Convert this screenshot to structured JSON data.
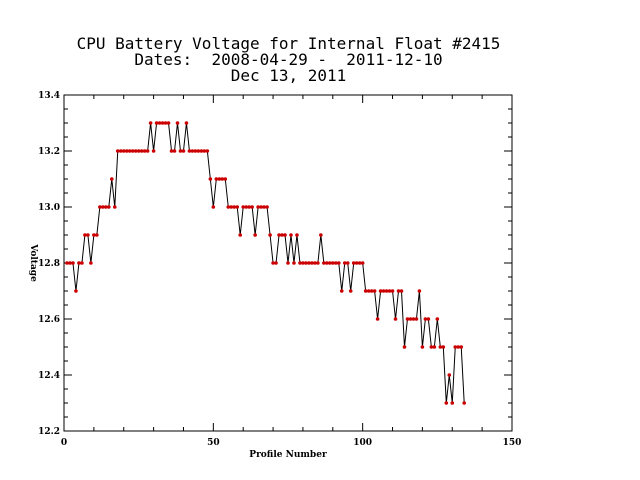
{
  "chart_data": {
    "type": "line",
    "title_lines": [
      "CPU Battery Voltage for Internal Float #2415",
      "Dates:  2008-04-29 -  2011-12-10",
      "Dec 13, 2011"
    ],
    "xlabel": "Profile Number",
    "ylabel": "Voltage",
    "xlim": [
      0,
      150
    ],
    "ylim": [
      12.2,
      13.4
    ],
    "xticks": [
      0,
      50,
      100,
      150
    ],
    "xtick_labels": [
      "0",
      "50",
      "100",
      "150"
    ],
    "yticks": [
      12.2,
      12.4,
      12.6,
      12.8,
      13.0,
      13.2,
      13.4
    ],
    "ytick_labels": [
      "12.2",
      "12.4",
      "12.6",
      "12.8",
      "13.0",
      "13.2",
      "13.4"
    ],
    "marker_color": "#cc0000",
    "line_color": "#000000",
    "grid": false,
    "legend": "none",
    "series": [
      {
        "x": [
          1,
          2,
          3,
          4,
          5,
          6,
          7,
          8,
          9,
          10,
          11,
          12,
          13,
          14,
          15,
          16,
          17,
          18,
          19,
          20,
          21,
          22,
          23,
          24,
          25,
          26,
          27,
          28,
          29,
          30,
          31,
          32,
          33,
          34,
          35,
          36,
          37,
          38,
          39,
          40,
          41,
          42,
          43,
          44,
          45,
          46,
          47,
          48,
          49,
          50,
          51,
          52,
          53,
          54,
          55,
          56,
          57,
          58,
          59,
          60,
          61,
          62,
          63,
          64,
          65,
          66,
          67,
          68,
          69,
          70,
          71,
          72,
          73,
          74,
          75,
          76,
          77,
          78,
          79,
          80,
          81,
          82,
          83,
          84,
          85,
          86,
          87,
          88,
          89,
          90,
          91,
          92,
          93,
          94,
          95,
          96,
          97,
          98,
          99,
          100,
          101,
          102,
          103,
          104,
          105,
          106,
          107,
          108,
          109,
          110,
          111,
          112,
          113,
          114,
          115,
          116,
          117,
          118,
          119,
          120,
          121,
          122,
          123,
          124,
          125,
          126,
          127,
          128,
          129,
          130,
          131,
          132,
          133,
          134
        ],
        "y": [
          12.8,
          12.8,
          12.8,
          12.7,
          12.8,
          12.8,
          12.9,
          12.9,
          12.8,
          12.9,
          12.9,
          13.0,
          13.0,
          13.0,
          13.0,
          13.1,
          13.0,
          13.2,
          13.2,
          13.2,
          13.2,
          13.2,
          13.2,
          13.2,
          13.2,
          13.2,
          13.2,
          13.2,
          13.3,
          13.2,
          13.3,
          13.3,
          13.3,
          13.3,
          13.3,
          13.2,
          13.2,
          13.3,
          13.2,
          13.2,
          13.3,
          13.2,
          13.2,
          13.2,
          13.2,
          13.2,
          13.2,
          13.2,
          13.1,
          13.0,
          13.1,
          13.1,
          13.1,
          13.1,
          13.0,
          13.0,
          13.0,
          13.0,
          12.9,
          13.0,
          13.0,
          13.0,
          13.0,
          12.9,
          13.0,
          13.0,
          13.0,
          13.0,
          12.9,
          12.8,
          12.8,
          12.9,
          12.9,
          12.9,
          12.8,
          12.9,
          12.8,
          12.9,
          12.8,
          12.8,
          12.8,
          12.8,
          12.8,
          12.8,
          12.8,
          12.9,
          12.8,
          12.8,
          12.8,
          12.8,
          12.8,
          12.8,
          12.7,
          12.8,
          12.8,
          12.7,
          12.8,
          12.8,
          12.8,
          12.8,
          12.7,
          12.7,
          12.7,
          12.7,
          12.6,
          12.7,
          12.7,
          12.7,
          12.7,
          12.7,
          12.6,
          12.7,
          12.7,
          12.5,
          12.6,
          12.6,
          12.6,
          12.6,
          12.7,
          12.5,
          12.6,
          12.6,
          12.5,
          12.5,
          12.6,
          12.5,
          12.5,
          12.3,
          12.4,
          12.3,
          12.5,
          12.5,
          12.5,
          12.3
        ]
      }
    ]
  }
}
